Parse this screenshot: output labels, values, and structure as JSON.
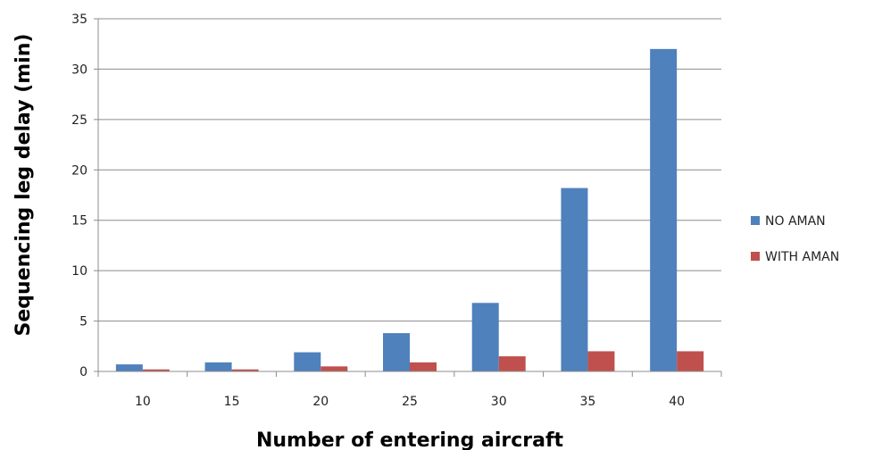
{
  "chart_data": {
    "type": "bar",
    "title": "",
    "xlabel": "Number of entering aircraft",
    "ylabel": "Sequencing leg delay (min)",
    "categories": [
      "10",
      "15",
      "20",
      "25",
      "30",
      "35",
      "40"
    ],
    "series": [
      {
        "name": "NO AMAN",
        "color": "#4f81bd",
        "values": [
          0.7,
          0.9,
          1.9,
          3.8,
          6.8,
          18.2,
          32.0
        ]
      },
      {
        "name": "WITH AMAN",
        "color": "#c0504d",
        "values": [
          0.2,
          0.2,
          0.5,
          0.9,
          1.5,
          2.0,
          2.0
        ]
      }
    ],
    "ylim": [
      0,
      35
    ],
    "yticks": [
      0,
      5,
      10,
      15,
      20,
      25,
      30,
      35
    ],
    "grid": true,
    "legend_position": "right"
  }
}
